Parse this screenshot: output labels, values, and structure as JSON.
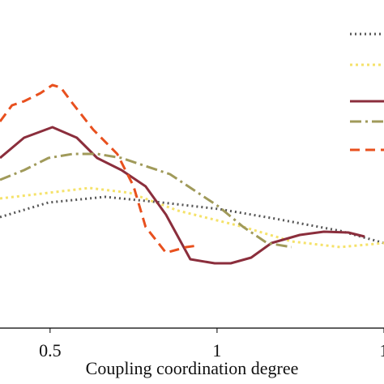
{
  "chart_data": {
    "type": "line",
    "xlabel": "Coupling coordination degree",
    "xlim": [
      0.35,
      1.5
    ],
    "xticks": [
      0.5,
      1,
      {
        "value": 1.5,
        "label": "1"
      }
    ],
    "ylim": [
      0,
      4
    ],
    "series": [
      {
        "color": "#555555",
        "dash": "2,4",
        "x": [
          0.35,
          0.495,
          0.665,
          0.835,
          1.005,
          1.175,
          1.369,
          1.5
        ],
        "values": [
          1.37,
          1.55,
          1.62,
          1.55,
          1.47,
          1.35,
          1.2,
          1.05
        ]
      },
      {
        "color": "#f5e26a",
        "dash": "3,4",
        "x": [
          0.35,
          0.495,
          0.617,
          0.738,
          0.883,
          1.078,
          1.223,
          1.369,
          1.5
        ],
        "values": [
          1.6,
          1.67,
          1.73,
          1.67,
          1.45,
          1.25,
          1.07,
          1.0,
          1.05
        ]
      },
      {
        "color": "#8b2e3c",
        "dash": "",
        "x": [
          0.35,
          0.422,
          0.507,
          0.58,
          0.641,
          0.714,
          0.786,
          0.847,
          0.92,
          0.993,
          1.041,
          1.102,
          1.163,
          1.248,
          1.32,
          1.393,
          1.442
        ],
        "values": [
          2.1,
          2.35,
          2.48,
          2.35,
          2.1,
          1.95,
          1.75,
          1.4,
          0.85,
          0.8,
          0.8,
          0.87,
          1.05,
          1.15,
          1.19,
          1.18,
          1.13
        ]
      },
      {
        "color": "#a09a5a",
        "dash": "14,5,3,5",
        "x": [
          0.35,
          0.422,
          0.495,
          0.568,
          0.641,
          0.714,
          0.786,
          0.859,
          0.932,
          1.005,
          1.078,
          1.15,
          1.223
        ],
        "values": [
          1.83,
          1.95,
          2.1,
          2.15,
          2.15,
          2.1,
          2.0,
          1.9,
          1.7,
          1.5,
          1.25,
          1.05,
          1.0
        ]
      },
      {
        "color": "#e8501e",
        "dash": "12,7",
        "x": [
          0.35,
          0.386,
          0.422,
          0.471,
          0.507,
          0.532,
          0.568,
          0.629,
          0.701,
          0.75,
          0.786,
          0.847,
          0.908,
          0.944
        ],
        "values": [
          2.55,
          2.75,
          2.8,
          2.9,
          3.0,
          2.97,
          2.77,
          2.45,
          2.15,
          1.75,
          1.25,
          0.93,
          1.0,
          1.02
        ]
      }
    ]
  }
}
